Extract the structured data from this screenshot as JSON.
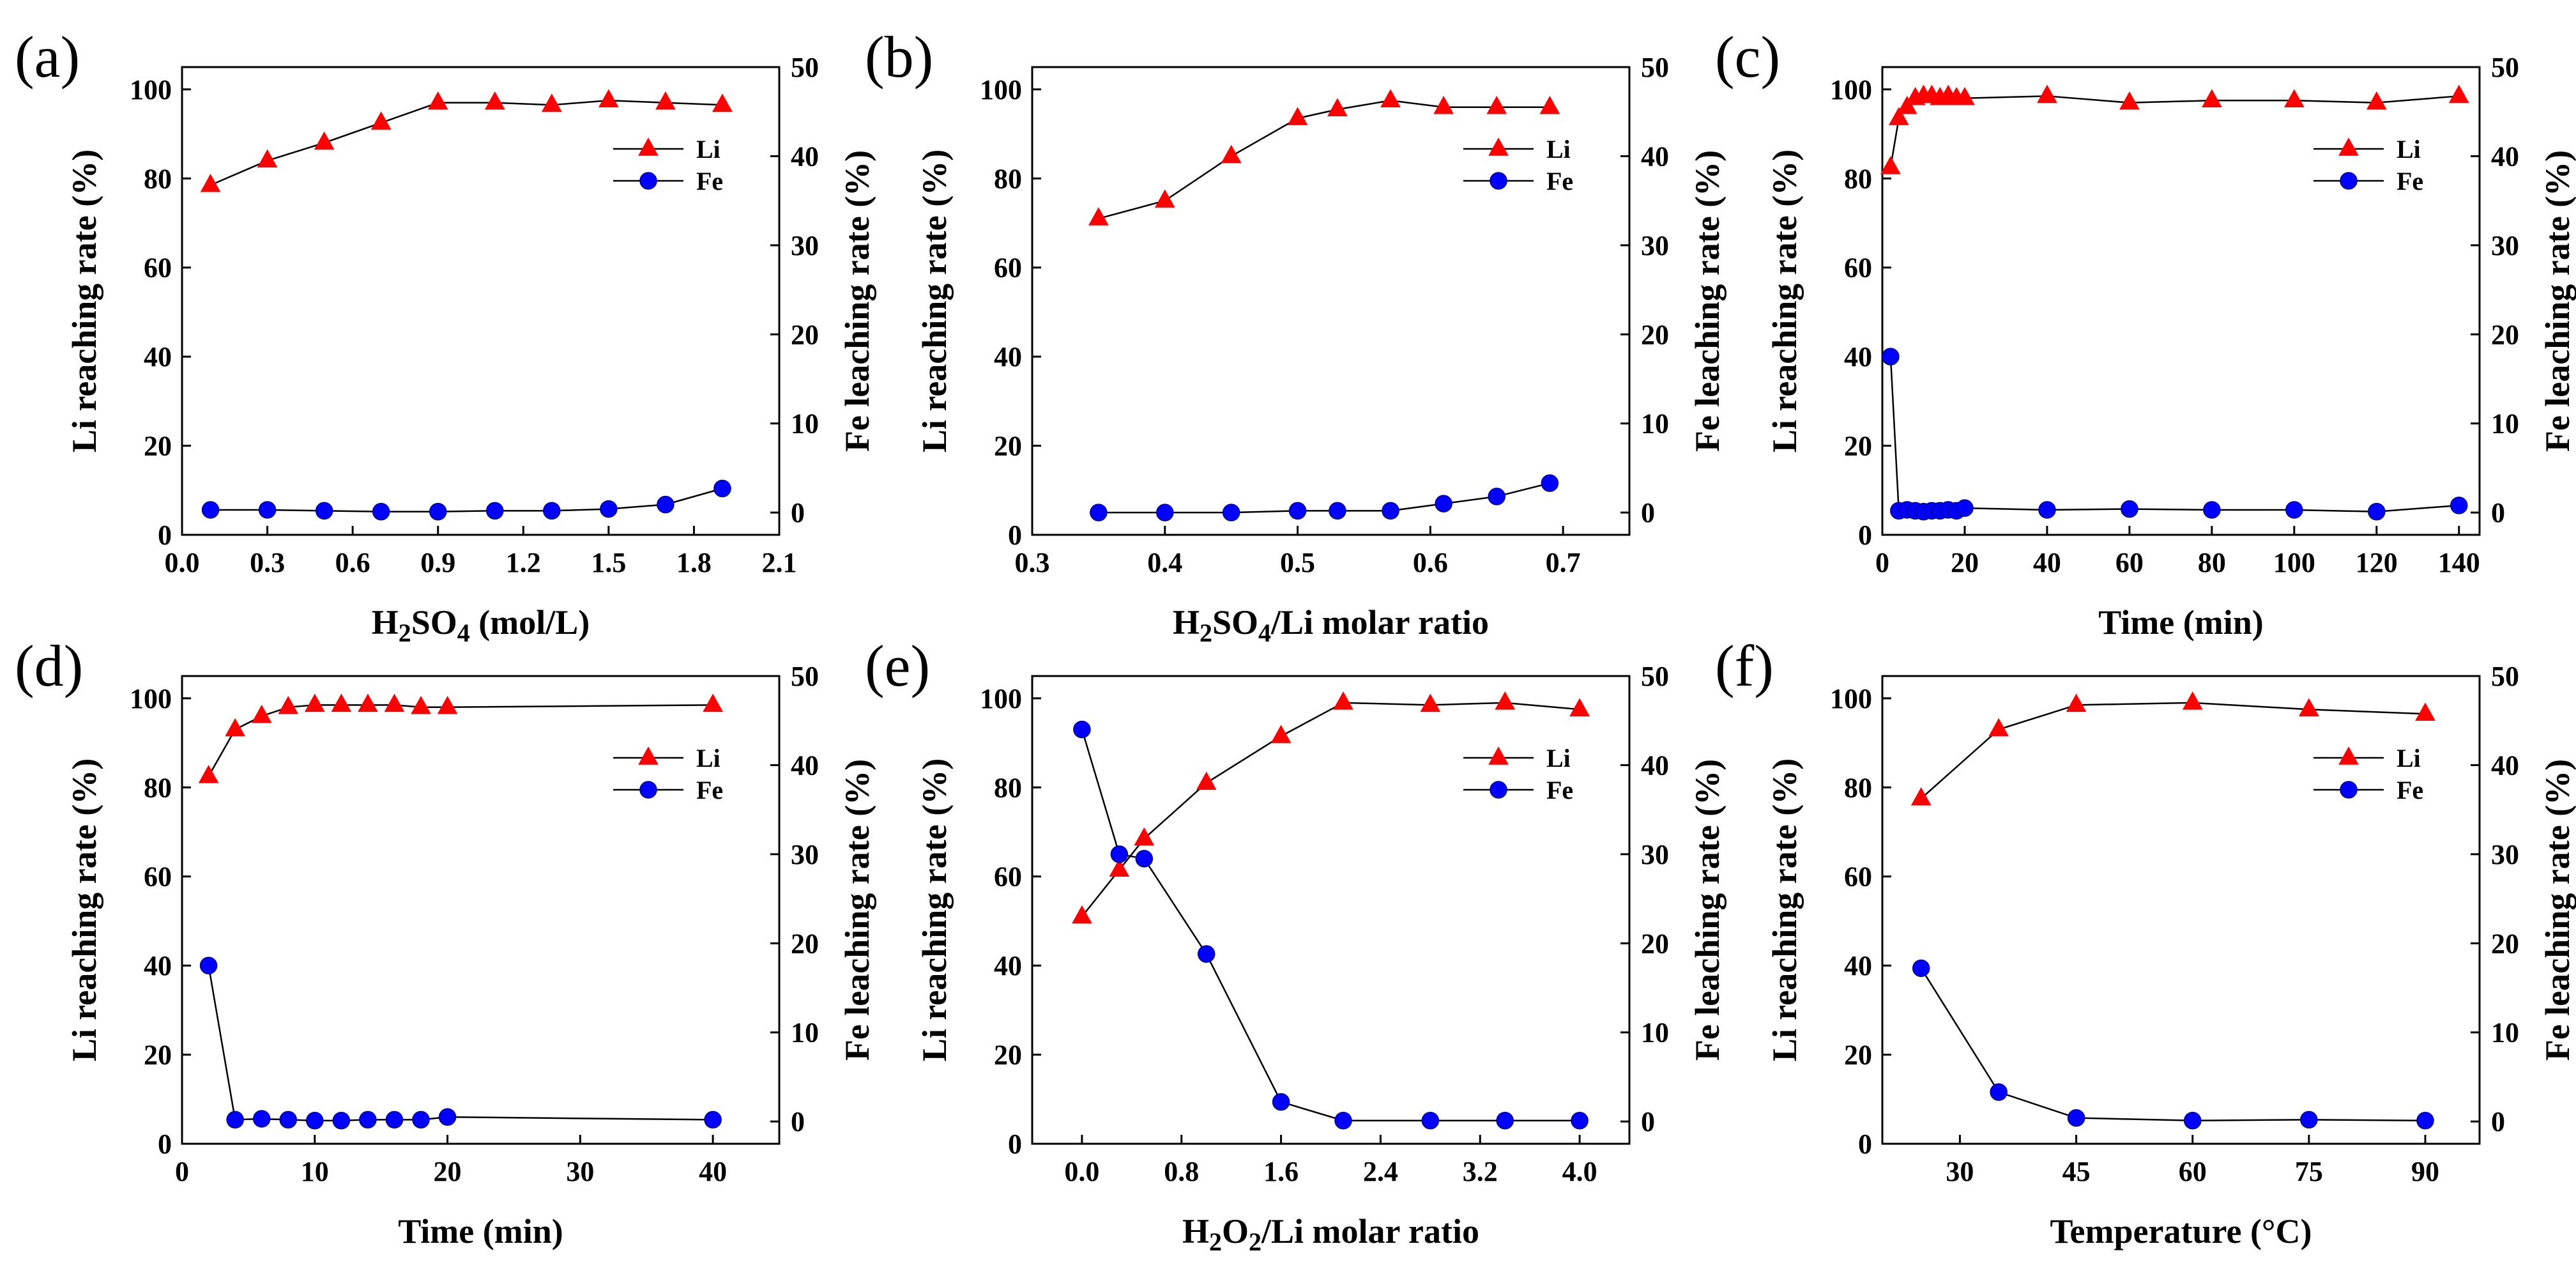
{
  "figure": {
    "colors": {
      "li": "#ff0000",
      "fe": "#0000ff",
      "line": "#000000"
    },
    "chart_data": [
      {
        "panel": "(a)",
        "type": "line",
        "xlabel": "H2SO4 (mol/L)",
        "xlabel_parts": [
          [
            "H",
            0
          ],
          [
            "2",
            1
          ],
          [
            "SO",
            0
          ],
          [
            "4",
            1
          ],
          [
            " (mol/L)",
            0
          ]
        ],
        "ylabel": "Li reaching rate (%)",
        "y2label": "Fe leaching rate (%)",
        "xlim": [
          0.0,
          2.1
        ],
        "xticks": [
          0.0,
          0.3,
          0.6,
          0.9,
          1.2,
          1.5,
          1.8,
          2.1
        ],
        "xtick_labels": [
          "0.0",
          "0.3",
          "0.6",
          "0.9",
          "1.2",
          "1.5",
          "1.8",
          "2.1"
        ],
        "ylim": [
          0,
          105
        ],
        "yticks": [
          0,
          20,
          40,
          60,
          80,
          100
        ],
        "y2lim": [
          -2.5,
          50
        ],
        "y2ticks": [
          0,
          10,
          20,
          30,
          40,
          50
        ],
        "legend": [
          "Li",
          "Fe"
        ],
        "legend_pos": "top-right",
        "series": [
          {
            "name": "Li",
            "axis": "left",
            "marker": "triangle",
            "x": [
              0.1,
              0.3,
              0.5,
              0.7,
              0.9,
              1.1,
              1.3,
              1.5,
              1.7,
              1.9
            ],
            "values": [
              78.5,
              84,
              88,
              92.5,
              97,
              97,
              96.5,
              97.5,
              97,
              96.5
            ]
          },
          {
            "name": "Fe",
            "axis": "right",
            "marker": "circle",
            "x": [
              0.1,
              0.3,
              0.5,
              0.7,
              0.9,
              1.1,
              1.3,
              1.5,
              1.7,
              1.9
            ],
            "values": [
              0.3,
              0.3,
              0.2,
              0.1,
              0.1,
              0.2,
              0.2,
              0.4,
              0.9,
              2.7
            ]
          }
        ]
      },
      {
        "panel": "(b)",
        "type": "line",
        "xlabel": "H2SO4/Li molar ratio",
        "xlabel_parts": [
          [
            "H",
            0
          ],
          [
            "2",
            1
          ],
          [
            "SO",
            0
          ],
          [
            "4",
            1
          ],
          [
            "/Li molar ratio",
            0
          ]
        ],
        "ylabel": "Li reaching rate (%)",
        "y2label": "Fe leaching rate (%)",
        "xlim": [
          0.3,
          0.75
        ],
        "xticks": [
          0.3,
          0.4,
          0.5,
          0.6,
          0.7
        ],
        "xtick_labels": [
          "0.3",
          "0.4",
          "0.5",
          "0.6",
          "0.7"
        ],
        "ylim": [
          0,
          105
        ],
        "yticks": [
          0,
          20,
          40,
          60,
          80,
          100
        ],
        "y2lim": [
          -2.5,
          50
        ],
        "y2ticks": [
          0,
          10,
          20,
          30,
          40,
          50
        ],
        "legend": [
          "Li",
          "Fe"
        ],
        "legend_pos": "top-right",
        "series": [
          {
            "name": "Li",
            "axis": "left",
            "marker": "triangle",
            "x": [
              0.35,
              0.4,
              0.45,
              0.5,
              0.53,
              0.57,
              0.61,
              0.65,
              0.69
            ],
            "values": [
              71,
              75,
              85,
              93.5,
              95.5,
              97.5,
              96,
              96,
              96
            ]
          },
          {
            "name": "Fe",
            "axis": "right",
            "marker": "circle",
            "x": [
              0.35,
              0.4,
              0.45,
              0.5,
              0.53,
              0.57,
              0.61,
              0.65,
              0.69
            ],
            "values": [
              0,
              0,
              0,
              0.2,
              0.2,
              0.2,
              1,
              1.8,
              3.3
            ]
          }
        ]
      },
      {
        "panel": "(c)",
        "type": "line",
        "xlabel": "Time (min)",
        "xlabel_parts": [
          [
            "Time (min)",
            0
          ]
        ],
        "ylabel": "Li reaching rate (%)",
        "y2label": "Fe leaching rate (%)",
        "xlim": [
          0,
          145
        ],
        "xticks": [
          0,
          20,
          40,
          60,
          80,
          100,
          120,
          140
        ],
        "xtick_labels": [
          "0",
          "20",
          "40",
          "60",
          "80",
          "100",
          "120",
          "140"
        ],
        "ylim": [
          0,
          105
        ],
        "yticks": [
          0,
          20,
          40,
          60,
          80,
          100
        ],
        "y2lim": [
          -2.5,
          50
        ],
        "y2ticks": [
          0,
          10,
          20,
          30,
          40,
          50
        ],
        "legend": [
          "Li",
          "Fe"
        ],
        "legend_pos": "top-right",
        "series": [
          {
            "name": "Li",
            "axis": "left",
            "marker": "triangle",
            "x": [
              2,
              4,
              6,
              8,
              10,
              12,
              14,
              16,
              18,
              20,
              40,
              60,
              80,
              100,
              120,
              140
            ],
            "values": [
              82.5,
              93.5,
              96,
              98,
              98.5,
              98.5,
              98,
              98.5,
              98,
              98,
              98.5,
              97,
              97.5,
              97.5,
              97,
              98.5
            ]
          },
          {
            "name": "Fe",
            "axis": "right",
            "marker": "circle",
            "x": [
              2,
              4,
              6,
              8,
              10,
              12,
              14,
              16,
              18,
              20,
              40,
              60,
              80,
              100,
              120,
              140
            ],
            "values": [
              17.5,
              0.2,
              0.3,
              0.2,
              0.1,
              0.2,
              0.2,
              0.3,
              0.2,
              0.5,
              0.3,
              0.4,
              0.3,
              0.3,
              0.1,
              0.8
            ]
          }
        ]
      },
      {
        "panel": "(d)",
        "type": "line",
        "xlabel": "Time (min)",
        "xlabel_parts": [
          [
            "Time (min)",
            0
          ]
        ],
        "ylabel": "Li reaching rate (%)",
        "y2label": "Fe leaching rate (%)",
        "xlim": [
          0,
          45
        ],
        "xticks": [
          0,
          10,
          20,
          30,
          40
        ],
        "xtick_labels": [
          "0",
          "10",
          "20",
          "30",
          "40"
        ],
        "ylim": [
          0,
          105
        ],
        "yticks": [
          0,
          20,
          40,
          60,
          80,
          100
        ],
        "y2lim": [
          -2.5,
          50
        ],
        "y2ticks": [
          0,
          10,
          20,
          30,
          40,
          50
        ],
        "legend": [
          "Li",
          "Fe"
        ],
        "legend_pos": "top-right",
        "series": [
          {
            "name": "Li",
            "axis": "left",
            "marker": "triangle",
            "x": [
              2,
              4,
              6,
              8,
              10,
              12,
              14,
              16,
              18,
              20,
              40
            ],
            "values": [
              82.5,
              93,
              96,
              98,
              98.5,
              98.5,
              98.5,
              98.5,
              98,
              98,
              98.5
            ]
          },
          {
            "name": "Fe",
            "axis": "right",
            "marker": "circle",
            "x": [
              2,
              4,
              6,
              8,
              10,
              12,
              14,
              16,
              18,
              20,
              40
            ],
            "values": [
              17.5,
              0.2,
              0.3,
              0.2,
              0.1,
              0.1,
              0.2,
              0.2,
              0.2,
              0.5,
              0.2
            ]
          }
        ]
      },
      {
        "panel": "(e)",
        "type": "line",
        "xlabel": "H2O2/Li molar ratio",
        "xlabel_parts": [
          [
            "H",
            0
          ],
          [
            "2",
            1
          ],
          [
            "O",
            0
          ],
          [
            "2",
            1
          ],
          [
            "/Li molar ratio",
            0
          ]
        ],
        "ylabel": "Li reaching rate (%)",
        "y2label": "Fe leaching rate (%)",
        "xlim": [
          -0.4,
          4.4
        ],
        "xticks": [
          0.0,
          0.8,
          1.6,
          2.4,
          3.2,
          4.0
        ],
        "xtick_labels": [
          "0.0",
          "0.8",
          "1.6",
          "2.4",
          "3.2",
          "4.0"
        ],
        "ylim": [
          0,
          105
        ],
        "yticks": [
          0,
          20,
          40,
          60,
          80,
          100
        ],
        "y2lim": [
          -2.5,
          50
        ],
        "y2ticks": [
          0,
          10,
          20,
          30,
          40,
          50
        ],
        "legend": [
          "Li",
          "Fe"
        ],
        "legend_pos": "top-right",
        "series": [
          {
            "name": "Li",
            "axis": "left",
            "marker": "triangle",
            "x": [
              0,
              0.3,
              0.5,
              1.0,
              1.6,
              2.1,
              2.8,
              3.4,
              4.0
            ],
            "values": [
              51,
              61.5,
              68.5,
              81,
              91.5,
              99,
              98.5,
              99,
              97.5
            ]
          },
          {
            "name": "Fe",
            "axis": "right",
            "marker": "circle",
            "x": [
              0,
              0.3,
              0.5,
              1.0,
              1.6,
              2.1,
              2.8,
              3.4,
              4.0
            ],
            "values": [
              44,
              30,
              29.5,
              18.8,
              2.2,
              0.1,
              0.1,
              0.1,
              0.1
            ]
          }
        ]
      },
      {
        "panel": "(f)",
        "type": "line",
        "xlabel": "Temperature (°C)",
        "xlabel_parts": [
          [
            "Temperature (°C)",
            0
          ]
        ],
        "ylabel": "Li reaching rate (%)",
        "y2label": "Fe leaching rate (%)",
        "xlim": [
          20,
          97
        ],
        "xticks": [
          30,
          45,
          60,
          75,
          90
        ],
        "xtick_labels": [
          "30",
          "45",
          "60",
          "75",
          "90"
        ],
        "ylim": [
          0,
          105
        ],
        "yticks": [
          0,
          20,
          40,
          60,
          80,
          100
        ],
        "y2lim": [
          -2.5,
          50
        ],
        "y2ticks": [
          0,
          10,
          20,
          30,
          40,
          50
        ],
        "legend": [
          "Li",
          "Fe"
        ],
        "legend_pos": "top-right",
        "series": [
          {
            "name": "Li",
            "axis": "left",
            "marker": "triangle",
            "x": [
              25,
              35,
              45,
              60,
              75,
              90
            ],
            "values": [
              77.5,
              93,
              98.5,
              99,
              97.5,
              96.5
            ]
          },
          {
            "name": "Fe",
            "axis": "right",
            "marker": "circle",
            "x": [
              25,
              35,
              45,
              60,
              75,
              90
            ],
            "values": [
              17.2,
              3.3,
              0.4,
              0.1,
              0.2,
              0.1
            ]
          }
        ]
      }
    ]
  }
}
